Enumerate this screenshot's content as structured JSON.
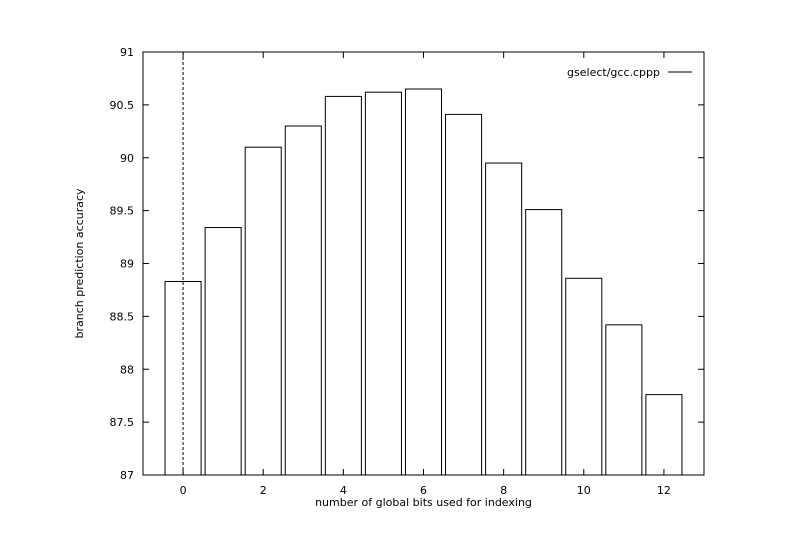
{
  "chart_data": {
    "type": "bar",
    "xlabel": "number of global bits used for indexing",
    "ylabel": "branch prediction accuracy",
    "legend": {
      "label": "gselect/gcc.cppp",
      "placement": "top-right"
    },
    "xlim": [
      -1,
      13
    ],
    "ylim": [
      87,
      91
    ],
    "xticks": [
      0,
      2,
      4,
      6,
      8,
      10,
      12
    ],
    "yticks": [
      87,
      87.5,
      88,
      88.5,
      89,
      89.5,
      90,
      90.5,
      91
    ],
    "bar_width": 0.9,
    "grid": false,
    "zero_line": true,
    "series": [
      {
        "name": "gselect/gcc.cppp",
        "x": [
          0,
          1,
          2,
          3,
          4,
          5,
          6,
          7,
          8,
          9,
          10,
          11,
          12
        ],
        "values": [
          88.83,
          89.34,
          90.1,
          90.3,
          90.58,
          90.62,
          90.65,
          90.41,
          89.95,
          89.51,
          88.86,
          88.42,
          87.76
        ]
      }
    ]
  }
}
